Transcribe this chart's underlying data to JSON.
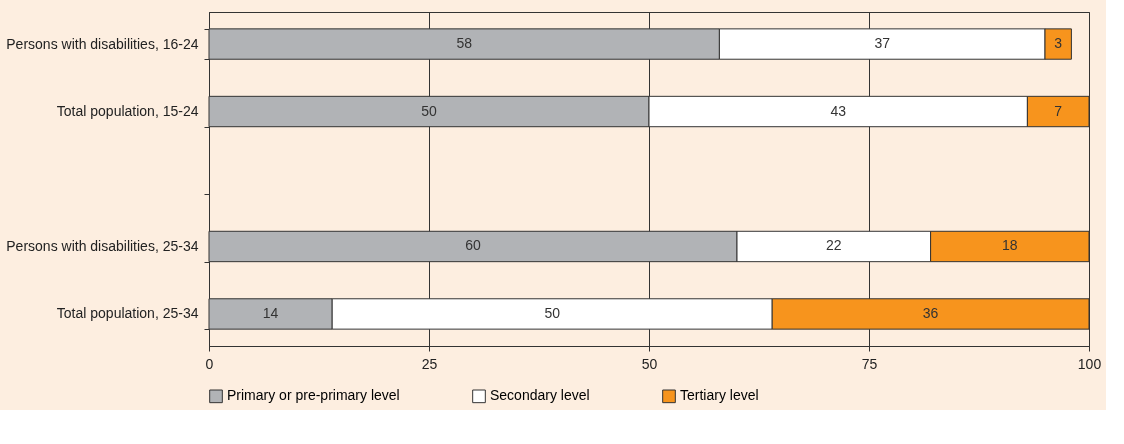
{
  "chart_data": {
    "type": "bar",
    "orientation": "horizontal",
    "stacked": true,
    "data_labels": true,
    "grid": "x",
    "legend": "bottom",
    "categories": [
      "Persons with disabilities, 16-24",
      "Total population, 15-24",
      null,
      "Persons with disabilities, 25-34",
      "Total population, 25-34"
    ],
    "xlim": [
      0,
      100
    ],
    "xticks": [
      0,
      25,
      50,
      75,
      100
    ],
    "series": [
      {
        "name": "Primary or pre-primary level",
        "color": "#b1b3b6",
        "values": [
          58,
          50,
          null,
          60,
          14
        ]
      },
      {
        "name": "Secondary level",
        "color": "#ffffff",
        "values": [
          37,
          43,
          null,
          22,
          50
        ]
      },
      {
        "name": "Tertiary level",
        "color": "#f7941d",
        "values": [
          3,
          7,
          null,
          18,
          36
        ]
      }
    ]
  }
}
